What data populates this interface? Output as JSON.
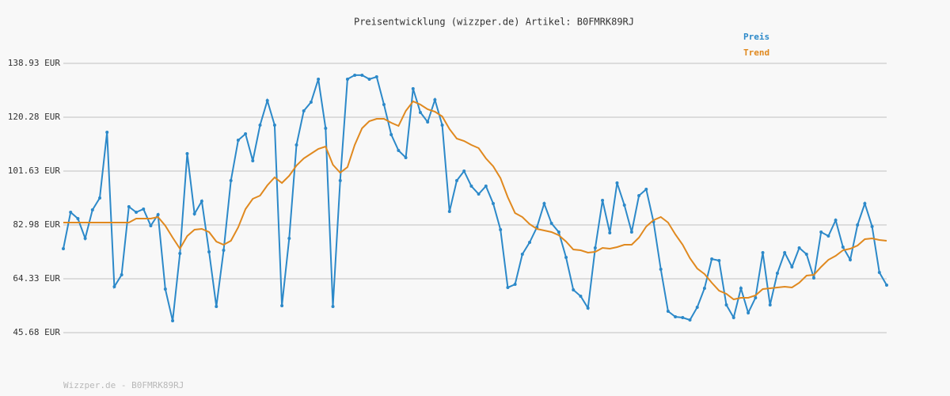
{
  "chart_data": {
    "type": "line",
    "title": "Preisentwicklung (wizzper.de) Artikel: B0FMRK89RJ",
    "footer": "Wizzper.de - B0FMRK89RJ",
    "ylim": [
      45.68,
      138.93
    ],
    "yticks": [
      {
        "value": 45.68,
        "label": "45.68 EUR"
      },
      {
        "value": 64.33,
        "label": "64.33 EUR"
      },
      {
        "value": 82.98,
        "label": "82.98 EUR"
      },
      {
        "value": 101.63,
        "label": "101.63 EUR"
      },
      {
        "value": 120.28,
        "label": "120.28 EUR"
      },
      {
        "value": 138.93,
        "label": "138.93 EUR"
      }
    ],
    "grid": true,
    "legend": "top-right",
    "series": [
      {
        "name": "Preis",
        "color": "#2c89c9",
        "markers": true,
        "values": [
          74.76,
          87.37,
          85.18,
          78.32,
          88.2,
          92.31,
          115.08,
          61.59,
          65.7,
          89.29,
          87.37,
          88.47,
          82.71,
          86.55,
          60.77,
          49.79,
          73.11,
          107.67,
          86.83,
          91.21,
          73.66,
          54.73,
          74.21,
          98.35,
          112.33,
          114.53,
          105.2,
          117.55,
          126.05,
          117.55,
          55.01,
          78.32,
          110.69,
          122.48,
          125.5,
          133.46,
          116.45,
          54.73,
          98.35,
          133.46,
          134.83,
          134.83,
          133.46,
          134.28,
          124.68,
          114.26,
          108.77,
          106.3,
          130.16,
          121.94,
          118.64,
          126.32,
          117.55,
          87.65,
          98.35,
          101.64,
          96.43,
          93.68,
          96.43,
          90.39,
          81.34,
          61.32,
          62.41,
          72.84,
          76.95,
          82.16,
          90.39,
          83.53,
          80.52,
          71.74,
          60.49,
          58.3,
          54.18,
          75.03,
          91.49,
          80.24,
          97.52,
          89.84,
          80.52,
          93.13,
          95.33,
          84.08,
          67.62,
          53.09,
          51.17,
          50.89,
          50.07,
          54.46,
          61.04,
          71.19,
          70.64,
          55.28,
          50.89,
          61.04,
          52.54,
          57.75,
          73.38,
          55.28,
          66.25,
          73.38,
          68.45,
          75.03,
          72.84,
          64.61,
          80.52,
          79.14,
          84.63,
          75.3,
          70.92,
          82.98,
          90.39,
          82.44,
          66.53,
          62.14
        ]
      },
      {
        "name": "Trend",
        "color": "#e0891f",
        "markers": false,
        "values": [
          83.81,
          83.81,
          83.81,
          83.81,
          83.81,
          83.81,
          83.81,
          83.81,
          83.81,
          83.81,
          85.18,
          85.18,
          85.18,
          85.73,
          82.71,
          78.6,
          74.76,
          79.14,
          81.34,
          81.62,
          80.52,
          77.23,
          76.13,
          77.5,
          82.16,
          88.47,
          92.04,
          93.13,
          96.7,
          99.44,
          97.52,
          99.99,
          103.56,
          106.03,
          107.67,
          109.32,
          110.14,
          103.83,
          101.09,
          103.01,
          110.69,
          116.45,
          118.92,
          119.74,
          119.74,
          118.37,
          117.27,
          122.48,
          125.77,
          124.68,
          123.03,
          122.21,
          120.56,
          116.17,
          112.88,
          112.06,
          110.69,
          109.59,
          106.03,
          103.28,
          99.17,
          92.59,
          87.1,
          85.73,
          83.26,
          81.62,
          81.07,
          80.52,
          79.42,
          77.23,
          74.48,
          74.21,
          73.38,
          73.66,
          75.03,
          74.76,
          75.3,
          76.13,
          76.13,
          78.6,
          82.44,
          84.63,
          85.73,
          83.81,
          79.69,
          76.13,
          71.47,
          67.9,
          65.98,
          62.96,
          60.22,
          59.12,
          57.2,
          57.75,
          57.75,
          58.57,
          60.77,
          61.04,
          61.32,
          61.59,
          61.32,
          62.96,
          65.43,
          65.7,
          68.45,
          70.92,
          72.29,
          74.21,
          74.76,
          75.85,
          78.05,
          78.32,
          77.77,
          77.5
        ]
      }
    ]
  }
}
